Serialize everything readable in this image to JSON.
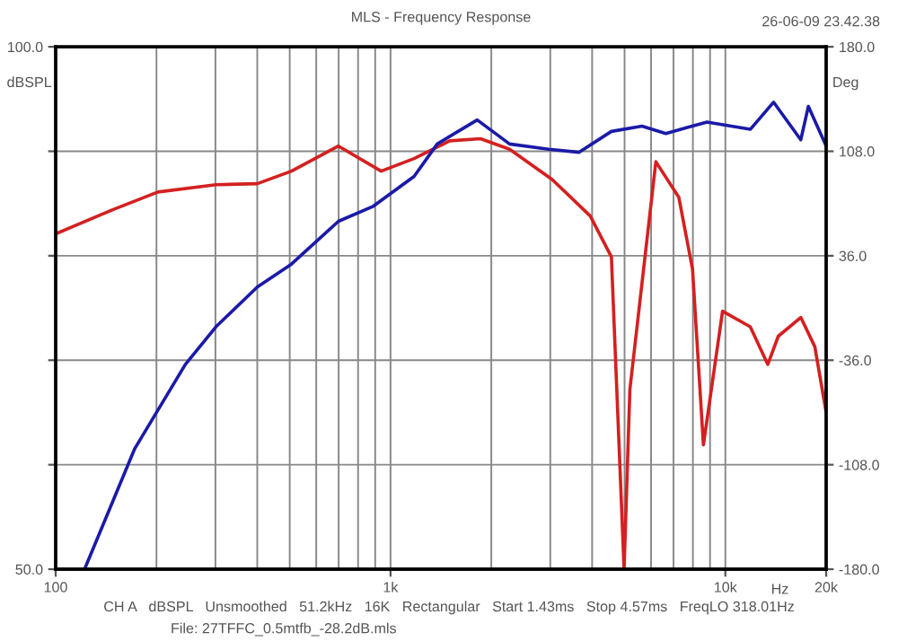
{
  "chart_data": {
    "type": "line",
    "title": "MLS - Frequency Response",
    "xlabel": "Hz",
    "ylabel": "dBSPL",
    "y2label": "Deg",
    "annotations": [
      "26-06-09 23.42.38",
      "CH A   dBSPL   Unsmoothed   51.2kHz   16K   Rectangular   Start 1.43ms   Stop 4.57ms   FreqLO 318.01Hz",
      "File: 27TFFC_0.5mtfb_-28.2dB.mls"
    ],
    "log": "x",
    "grid": true,
    "marker": "none",
    "line_style": "solid",
    "xlim": [
      100,
      20000
    ],
    "xticks": [
      {
        "value": 100,
        "label": "100"
      },
      {
        "value": 1000,
        "label": "1k"
      },
      {
        "value": 10000,
        "label": "10k"
      },
      {
        "value": 20000,
        "label": "20k"
      }
    ],
    "ylim": [
      50,
      100
    ],
    "yticks": [
      {
        "value": 50,
        "label": "50.0"
      },
      {
        "value": 60,
        "label": null
      },
      {
        "value": 70,
        "label": null
      },
      {
        "value": 80,
        "label": null
      },
      {
        "value": 90,
        "label": null
      },
      {
        "value": 100,
        "label": "100.0"
      }
    ],
    "y2lim": [
      -180,
      180
    ],
    "y2ticks": [
      {
        "value": -180,
        "label": "-180.0"
      },
      {
        "value": -108,
        "label": "-108.0"
      },
      {
        "value": -36,
        "label": "-36.0"
      },
      {
        "value": 36,
        "label": "36.0"
      },
      {
        "value": 108,
        "label": "108.0"
      },
      {
        "value": 180,
        "label": "180.0"
      }
    ],
    "series": [
      {
        "color": "#d42020",
        "x": [
          100,
          148,
          202,
          301,
          400,
          506,
          699,
          938,
          1176,
          1503,
          1857,
          2268,
          3041,
          3950,
          4567,
          4984,
          5186,
          6200,
          7260,
          7980,
          8600,
          9810,
          11870,
          13390,
          14390,
          16800,
          18500,
          20000
        ],
        "values": [
          82.1,
          84.4,
          86.1,
          86.8,
          86.9,
          88.1,
          90.5,
          88.1,
          89.3,
          91.0,
          91.2,
          90.2,
          87.3,
          83.8,
          79.9,
          50,
          67.2,
          89.0,
          85.6,
          78.7,
          61.9,
          74.7,
          73.2,
          69.6,
          72.3,
          74.1,
          71.3,
          65.0
        ]
      },
      {
        "color": "#1a1aa8",
        "x": [
          122,
          172,
          244,
          301,
          400,
          506,
          699,
          884,
          1176,
          1379,
          1815,
          2268,
          2967,
          3652,
          4567,
          5637,
          6640,
          8813,
          11870,
          13930,
          16800,
          17700,
          20000
        ],
        "values": [
          50,
          61.5,
          69.6,
          73.2,
          77.0,
          79.2,
          83.3,
          84.7,
          87.6,
          90.7,
          93.0,
          90.7,
          90.2,
          89.9,
          91.9,
          92.4,
          91.7,
          92.8,
          92.1,
          94.7,
          91.1,
          94.3,
          90.5
        ]
      }
    ]
  }
}
